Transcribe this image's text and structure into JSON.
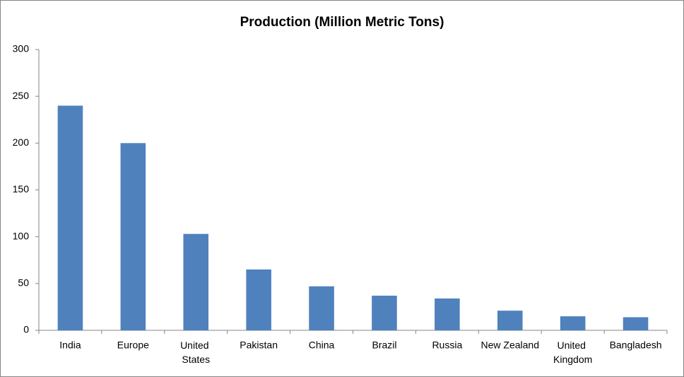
{
  "chart_data": {
    "type": "bar",
    "title": "Production (Million Metric Tons)",
    "categories": [
      "India",
      "Europe",
      "United States",
      "Pakistan",
      "China",
      "Brazil",
      "Russia",
      "New Zealand",
      "United Kingdom",
      "Bangladesh"
    ],
    "values": [
      240,
      200,
      103,
      65,
      47,
      37,
      34,
      21,
      15,
      14
    ],
    "color": "#4f81bd",
    "ylim": [
      0,
      300
    ],
    "yticks": [
      0,
      50,
      100,
      150,
      200,
      250,
      300
    ],
    "grid": false
  }
}
